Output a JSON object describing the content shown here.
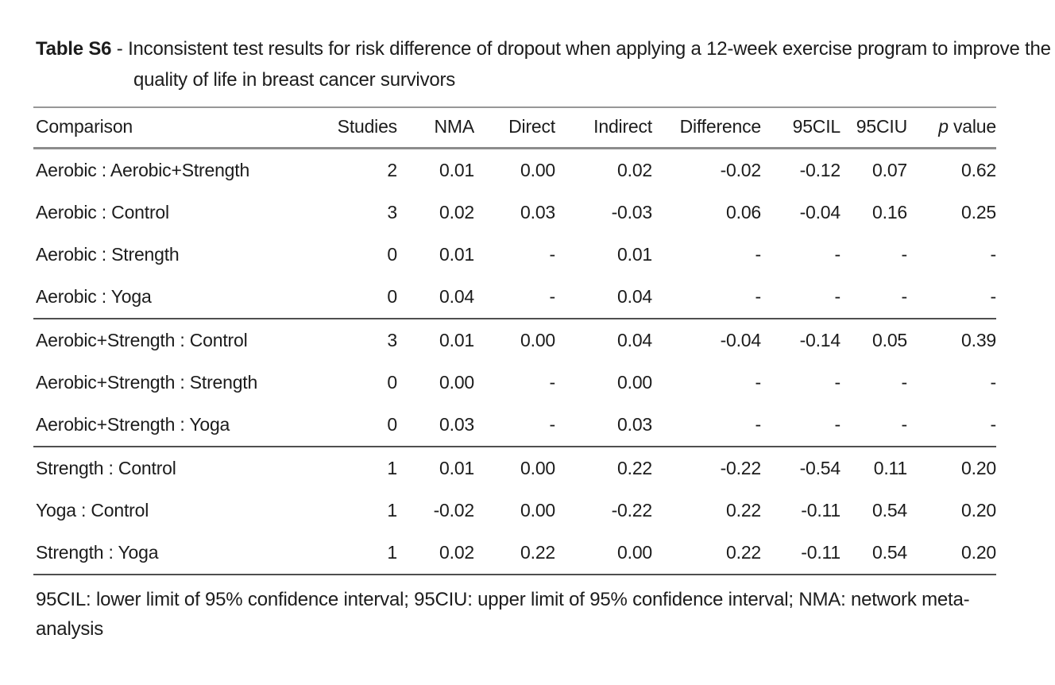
{
  "title": {
    "label": "Table S6",
    "separator": " - ",
    "text": "Inconsistent test results for risk difference of dropout when applying a 12-week exercise program to improve the quality of life in breast cancer survivors"
  },
  "table": {
    "columns": [
      {
        "label": "Comparison",
        "align": "left"
      },
      {
        "label": "Studies",
        "align": "right"
      },
      {
        "label": "NMA",
        "align": "right"
      },
      {
        "label": "Direct",
        "align": "right"
      },
      {
        "label": "Indirect",
        "align": "right"
      },
      {
        "label": "Difference",
        "align": "right"
      },
      {
        "label": "95CIL",
        "align": "right"
      },
      {
        "label": "95CIU",
        "align": "right"
      },
      {
        "label": "p value",
        "align": "right",
        "italic_first_word": true
      }
    ],
    "groups": [
      {
        "rows": [
          [
            "Aerobic : Aerobic+Strength",
            "2",
            "0.01",
            "0.00",
            "0.02",
            "-0.02",
            "-0.12",
            "0.07",
            "0.62"
          ],
          [
            "Aerobic : Control",
            "3",
            "0.02",
            "0.03",
            "-0.03",
            "0.06",
            "-0.04",
            "0.16",
            "0.25"
          ],
          [
            "Aerobic : Strength",
            "0",
            "0.01",
            "-",
            "0.01",
            "-",
            "-",
            "-",
            "-"
          ],
          [
            "Aerobic : Yoga",
            "0",
            "0.04",
            "-",
            "0.04",
            "-",
            "-",
            "-",
            "-"
          ]
        ]
      },
      {
        "rows": [
          [
            "Aerobic+Strength : Control",
            "3",
            "0.01",
            "0.00",
            "0.04",
            "-0.04",
            "-0.14",
            "0.05",
            "0.39"
          ],
          [
            "Aerobic+Strength : Strength",
            "0",
            "0.00",
            "-",
            "0.00",
            "-",
            "-",
            "-",
            "-"
          ],
          [
            "Aerobic+Strength : Yoga",
            "0",
            "0.03",
            "-",
            "0.03",
            "-",
            "-",
            "-",
            "-"
          ]
        ]
      },
      {
        "rows": [
          [
            "Strength : Control",
            "1",
            "0.01",
            "0.00",
            "0.22",
            "-0.22",
            "-0.54",
            "0.11",
            "0.20"
          ],
          [
            "Yoga : Control",
            "1",
            "-0.02",
            "0.00",
            "-0.22",
            "0.22",
            "-0.11",
            "0.54",
            "0.20"
          ],
          [
            "Strength : Yoga",
            "1",
            "0.02",
            "0.22",
            "0.00",
            "0.22",
            "-0.11",
            "0.54",
            "0.20"
          ]
        ]
      }
    ]
  },
  "footnote": "95CIL: lower limit of 95% confidence interval; 95CIU: upper limit of 95% confidence interval; NMA: network meta-analysis",
  "colors": {
    "text": "#1c1c1c",
    "rule_light": "#8c8c8c",
    "rule_dark": "#4f4f4f",
    "background": "#ffffff"
  }
}
